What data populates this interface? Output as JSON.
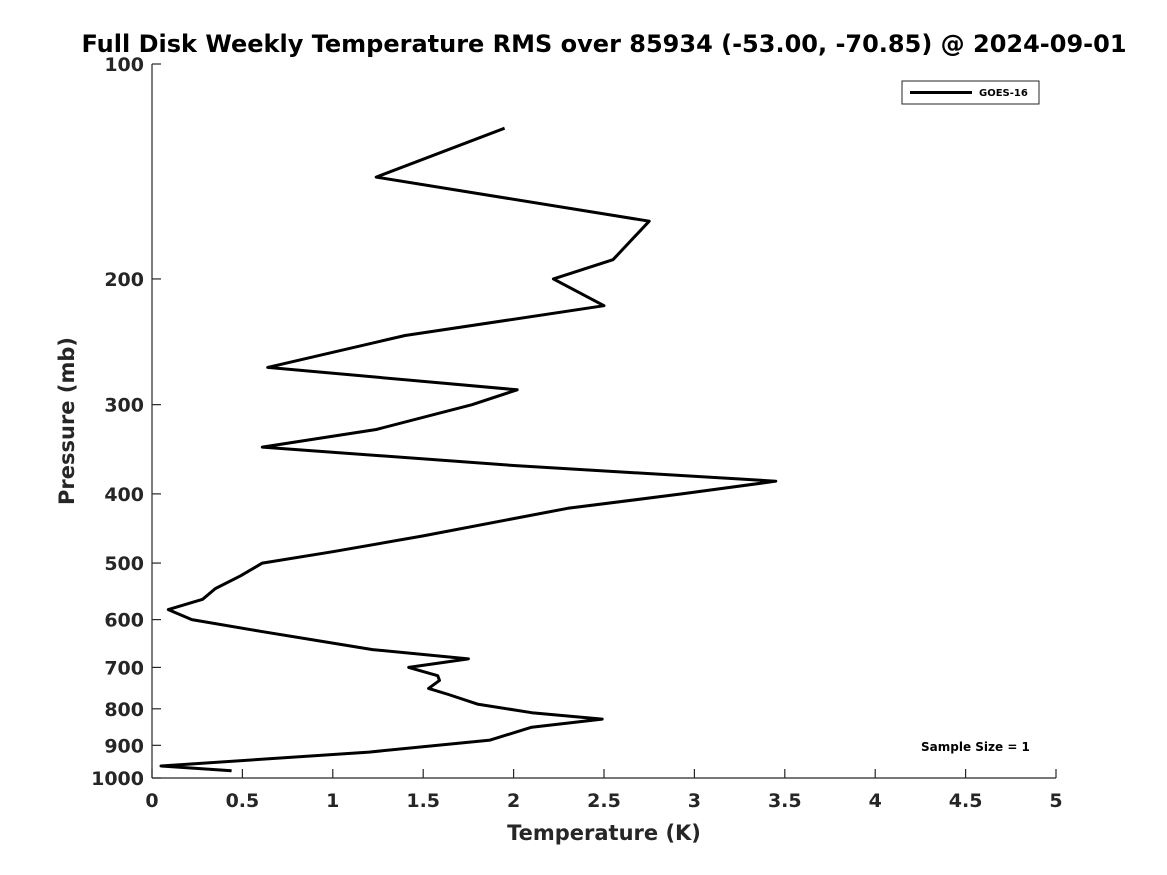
{
  "chart_data": {
    "type": "line",
    "title": "Full Disk Weekly Temperature RMS over 85934 (-53.00, -70.85) @ 2024-09-01",
    "xlabel": "Temperature (K)",
    "ylabel": "Pressure (mb)",
    "xlim": [
      0,
      5
    ],
    "ylim": [
      100,
      1000
    ],
    "yscale": "log",
    "y_reversed": true,
    "xticks": [
      0,
      0.5,
      1,
      1.5,
      2,
      2.5,
      3,
      3.5,
      4,
      4.5,
      5
    ],
    "xtick_labels": [
      "0",
      "0.5",
      "1",
      "1.5",
      "2",
      "2.5",
      "3",
      "3.5",
      "4",
      "4.5",
      "5"
    ],
    "yticks": [
      100,
      200,
      300,
      400,
      500,
      600,
      700,
      800,
      900,
      1000
    ],
    "ytick_labels": [
      "100",
      "200",
      "300",
      "400",
      "500",
      "600",
      "700",
      "800",
      "900",
      "1000"
    ],
    "grid": false,
    "legend_position": "top-right",
    "series": [
      {
        "name": "GOES-16",
        "color": "#000000",
        "points": [
          {
            "x": 1.95,
            "y": 123
          },
          {
            "x": 1.24,
            "y": 144
          },
          {
            "x": 2.75,
            "y": 166
          },
          {
            "x": 2.55,
            "y": 188
          },
          {
            "x": 2.22,
            "y": 200
          },
          {
            "x": 2.5,
            "y": 218
          },
          {
            "x": 1.4,
            "y": 240
          },
          {
            "x": 0.64,
            "y": 266
          },
          {
            "x": 2.02,
            "y": 286
          },
          {
            "x": 1.77,
            "y": 300
          },
          {
            "x": 1.24,
            "y": 325
          },
          {
            "x": 0.61,
            "y": 344
          },
          {
            "x": 2.0,
            "y": 365
          },
          {
            "x": 3.45,
            "y": 384
          },
          {
            "x": 2.93,
            "y": 400
          },
          {
            "x": 2.3,
            "y": 419
          },
          {
            "x": 1.5,
            "y": 458
          },
          {
            "x": 1.0,
            "y": 482
          },
          {
            "x": 0.61,
            "y": 500
          },
          {
            "x": 0.49,
            "y": 521
          },
          {
            "x": 0.35,
            "y": 543
          },
          {
            "x": 0.28,
            "y": 562
          },
          {
            "x": 0.09,
            "y": 581
          },
          {
            "x": 0.22,
            "y": 600
          },
          {
            "x": 0.6,
            "y": 623
          },
          {
            "x": 1.22,
            "y": 661
          },
          {
            "x": 1.75,
            "y": 681
          },
          {
            "x": 1.42,
            "y": 700
          },
          {
            "x": 1.58,
            "y": 719
          },
          {
            "x": 1.59,
            "y": 730
          },
          {
            "x": 1.53,
            "y": 749
          },
          {
            "x": 1.64,
            "y": 764
          },
          {
            "x": 1.8,
            "y": 788
          },
          {
            "x": 2.1,
            "y": 810
          },
          {
            "x": 2.49,
            "y": 827
          },
          {
            "x": 2.1,
            "y": 849
          },
          {
            "x": 1.87,
            "y": 885
          },
          {
            "x": 1.2,
            "y": 920
          },
          {
            "x": 0.05,
            "y": 962
          },
          {
            "x": 0.44,
            "y": 977
          }
        ]
      }
    ],
    "annotations": [
      {
        "text": "Sample Size = 1",
        "position": "bottom-right"
      }
    ]
  }
}
